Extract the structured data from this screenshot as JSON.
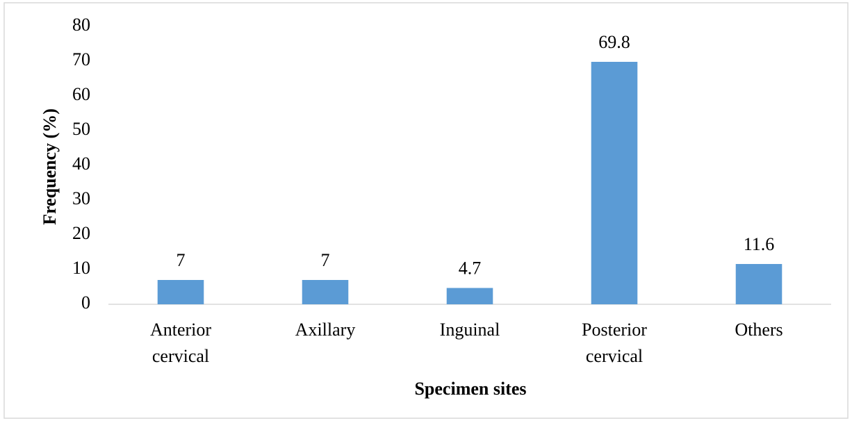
{
  "chart_data": {
    "type": "bar",
    "x_label": "Specimen sites",
    "y_label": "Frequency (%)",
    "categories": [
      "Anterior cervical",
      "Axillary",
      "Inguinal",
      "Posterior cervical",
      "Others"
    ],
    "values": [
      7,
      7,
      4.7,
      69.8,
      11.6
    ],
    "color": "#5b9bd5",
    "ylim": [
      0,
      80
    ],
    "yticks": [
      0,
      10,
      20,
      30,
      40,
      50,
      60,
      70,
      80
    ],
    "grid": false
  }
}
